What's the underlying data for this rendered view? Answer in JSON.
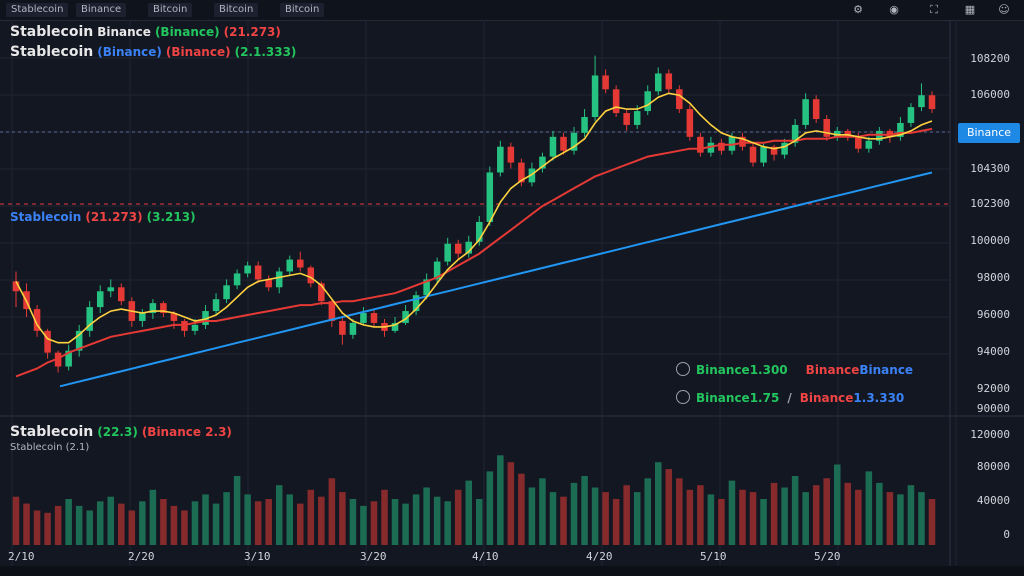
{
  "topbar": {
    "tabs": [
      "Stablecoin",
      "Binance",
      "Bitcoin",
      "Bitcoin"
    ],
    "icons": [
      "settings-icon",
      "camera-icon",
      "fullscreen-icon",
      "layout-icon",
      "user-icon"
    ]
  },
  "legend_main": {
    "line1": {
      "symbol": "Stablecoin",
      "name": "Binance",
      "params": "(Binance)",
      "value": "(21.273)"
    },
    "line2": {
      "symbol": "Stablecoin",
      "name": "(Binance)",
      "params": "(Binance)",
      "value": "(2.1.333)"
    }
  },
  "legend_ma": {
    "name": "Stablecoin",
    "value_red": "(21.273)",
    "value_green": "(3.213)"
  },
  "legend_volume": {
    "line1_a": "Stablecoin",
    "line1_b": "(22.3)",
    "line1_c": "(Binance 2.3)",
    "line2": "Stablecoin (2.1)"
  },
  "info_rows": {
    "row1": {
      "label": "Binance",
      "val1": "1.300",
      "val2": "Binance",
      "val3": "Binance"
    },
    "row2": {
      "label": "Binance",
      "val1": "1.75",
      "sep": "/",
      "val2": "Binance",
      "val3": "1.3.330"
    }
  },
  "price_axis": [
    "108200",
    "106000",
    "104300",
    "102300",
    "100000",
    "98000",
    "96000",
    "94000",
    "92000",
    "90000"
  ],
  "volume_axis": [
    "120000",
    "80000",
    "40000",
    "0"
  ],
  "time_axis": [
    "2/10",
    "2/20",
    "3/10",
    "3/20",
    "4/10",
    "4/20",
    "5/10",
    "5/20"
  ],
  "current_price_label": "Binance",
  "colors": {
    "up": "#26c281",
    "down": "#e53935",
    "ma_fast": "#ffd23f",
    "ma_mid": "#e53935",
    "ma_slow": "#2196f3",
    "bg": "#131722"
  },
  "chart_data": {
    "type": "candlestick",
    "candles": [
      [
        96800,
        96300,
        97300,
        95500
      ],
      [
        96300,
        95400,
        96700,
        95000
      ],
      [
        95400,
        94300,
        95600,
        94000
      ],
      [
        94300,
        93200,
        94400,
        92900
      ],
      [
        93200,
        92500,
        93300,
        92200
      ],
      [
        92500,
        93300,
        93600,
        92300
      ],
      [
        93300,
        94300,
        94600,
        93000
      ],
      [
        94300,
        95500,
        95800,
        94000
      ],
      [
        95500,
        96300,
        96600,
        95200
      ],
      [
        96300,
        96500,
        96900,
        96000
      ],
      [
        96500,
        95800,
        96700,
        95600
      ],
      [
        95800,
        94800,
        96000,
        94500
      ],
      [
        94800,
        95200,
        95400,
        94500
      ],
      [
        95200,
        95700,
        95900,
        94900
      ],
      [
        95700,
        95200,
        95800,
        95000
      ],
      [
        95200,
        94800,
        95300,
        94400
      ],
      [
        94800,
        94300,
        94900,
        94000
      ],
      [
        94300,
        94600,
        94900,
        94100
      ],
      [
        94600,
        95300,
        95600,
        94400
      ],
      [
        95300,
        95900,
        96200,
        95100
      ],
      [
        95900,
        96600,
        96900,
        95700
      ],
      [
        96600,
        97200,
        97400,
        96400
      ],
      [
        97200,
        97600,
        97800,
        97000
      ],
      [
        97600,
        96900,
        97800,
        96700
      ],
      [
        96900,
        96500,
        97100,
        96300
      ],
      [
        96500,
        97300,
        97500,
        96200
      ],
      [
        97300,
        97900,
        98100,
        97100
      ],
      [
        97900,
        97500,
        98300,
        97300
      ],
      [
        97500,
        96700,
        97600,
        96500
      ],
      [
        96700,
        95800,
        96800,
        95600
      ],
      [
        95800,
        94800,
        95900,
        94500
      ],
      [
        94800,
        94100,
        95000,
        93600
      ],
      [
        94100,
        94700,
        94900,
        93900
      ],
      [
        94700,
        95200,
        95500,
        94600
      ],
      [
        95200,
        94700,
        95400,
        94500
      ],
      [
        94700,
        94300,
        94900,
        94000
      ],
      [
        94300,
        94700,
        95000,
        94200
      ],
      [
        94700,
        95300,
        95600,
        94600
      ],
      [
        95300,
        96100,
        96300,
        95100
      ],
      [
        96100,
        96900,
        97200,
        95900
      ],
      [
        96900,
        97800,
        98000,
        96700
      ],
      [
        97800,
        98700,
        99000,
        97600
      ],
      [
        98700,
        98200,
        98900,
        97900
      ],
      [
        98200,
        98800,
        99100,
        98000
      ],
      [
        98800,
        99800,
        100100,
        98600
      ],
      [
        99800,
        102300,
        102600,
        99600
      ],
      [
        102300,
        103600,
        103900,
        102100
      ],
      [
        103600,
        102800,
        103800,
        102500
      ],
      [
        102800,
        101800,
        103000,
        101600
      ],
      [
        101800,
        102500,
        102800,
        101600
      ],
      [
        102500,
        103100,
        103300,
        102300
      ],
      [
        103100,
        104100,
        104400,
        102900
      ],
      [
        104100,
        103400,
        104300,
        103200
      ],
      [
        103400,
        104300,
        104600,
        103200
      ],
      [
        104300,
        105100,
        105500,
        104100
      ],
      [
        105100,
        107200,
        108200,
        104900
      ],
      [
        107200,
        106500,
        107500,
        106300
      ],
      [
        106500,
        105300,
        106700,
        105100
      ],
      [
        105300,
        104700,
        105500,
        104400
      ],
      [
        104700,
        105400,
        105700,
        104500
      ],
      [
        105400,
        106400,
        106700,
        105200
      ],
      [
        106400,
        107300,
        107600,
        106200
      ],
      [
        107300,
        106500,
        107500,
        106300
      ],
      [
        106500,
        105500,
        106700,
        105300
      ],
      [
        105500,
        104100,
        105700,
        103900
      ],
      [
        104100,
        103300,
        104300,
        103100
      ],
      [
        103300,
        103800,
        104100,
        103100
      ],
      [
        103800,
        103400,
        104000,
        103200
      ],
      [
        103400,
        104100,
        104300,
        103200
      ],
      [
        104100,
        103600,
        104300,
        103400
      ],
      [
        103600,
        102800,
        103800,
        102600
      ],
      [
        102800,
        103600,
        103800,
        102600
      ],
      [
        103600,
        103200,
        103700,
        102900
      ],
      [
        103200,
        103800,
        104000,
        103000
      ],
      [
        103800,
        104700,
        105000,
        103600
      ],
      [
        104700,
        106000,
        106300,
        104500
      ],
      [
        106000,
        105000,
        106200,
        104800
      ],
      [
        105000,
        104100,
        105200,
        103900
      ],
      [
        104100,
        104400,
        104600,
        103900
      ],
      [
        104400,
        104100,
        104500,
        103900
      ],
      [
        104100,
        103500,
        104300,
        103300
      ],
      [
        103500,
        103900,
        104100,
        103300
      ],
      [
        103900,
        104400,
        104600,
        103700
      ],
      [
        104400,
        104100,
        104500,
        103800
      ],
      [
        104100,
        104800,
        105100,
        103900
      ],
      [
        104800,
        105600,
        105800,
        104600
      ],
      [
        105600,
        106200,
        106800,
        105400
      ],
      [
        106200,
        105500,
        106400,
        105300
      ]
    ],
    "ma_fast": [
      96800,
      95800,
      94600,
      93900,
      93700,
      93700,
      94100,
      94600,
      95000,
      95300,
      95400,
      95300,
      95200,
      95300,
      95300,
      95200,
      95000,
      94800,
      94900,
      95100,
      95500,
      96000,
      96500,
      96800,
      96900,
      97000,
      97100,
      97200,
      97000,
      96600,
      95900,
      95200,
      94800,
      94600,
      94500,
      94500,
      94600,
      94900,
      95400,
      96000,
      96700,
      97400,
      97900,
      98300,
      98900,
      99800,
      100800,
      101500,
      101900,
      102200,
      102600,
      103000,
      103300,
      103600,
      104000,
      104800,
      105400,
      105600,
      105500,
      105500,
      105700,
      106100,
      106300,
      106200,
      105800,
      105200,
      104700,
      104300,
      104100,
      104000,
      103800,
      103600,
      103500,
      103600,
      103900,
      104300,
      104400,
      104300,
      104200,
      104200,
      104100,
      104000,
      104000,
      104100,
      104200,
      104400,
      104700,
      104900
    ],
    "ma_mid": [
      92000,
      92200,
      92400,
      92700,
      92900,
      93200,
      93400,
      93600,
      93800,
      94000,
      94100,
      94200,
      94300,
      94400,
      94500,
      94600,
      94600,
      94700,
      94800,
      94800,
      94900,
      95000,
      95100,
      95200,
      95300,
      95400,
      95500,
      95600,
      95600,
      95700,
      95700,
      95800,
      95800,
      95900,
      96000,
      96100,
      96200,
      96400,
      96600,
      96800,
      97000,
      97300,
      97600,
      97900,
      98200,
      98600,
      99000,
      99400,
      99800,
      100200,
      100600,
      100900,
      101200,
      101500,
      101800,
      102100,
      102300,
      102500,
      102700,
      102900,
      103100,
      103200,
      103300,
      103400,
      103500,
      103500,
      103600,
      103700,
      103700,
      103800,
      103800,
      103800,
      103900,
      103900,
      103900,
      104000,
      104000,
      104000,
      104100,
      104100,
      104100,
      104200,
      104200,
      104200,
      104300,
      104300,
      104400,
      104500
    ],
    "ma_slow": [
      91500,
      91700,
      91900,
      92100,
      92300,
      92500,
      92700,
      92900,
      93100,
      93300,
      93500,
      93700,
      93900,
      94100,
      94300,
      94500,
      94700,
      94900,
      95100,
      95300,
      95500,
      95700,
      95900,
      96100,
      96300,
      96500,
      96700,
      96900,
      97100,
      97300,
      97500,
      97700,
      97900,
      98100,
      98300,
      98500,
      98700,
      98900,
      99100,
      99300,
      99500,
      99700,
      99900,
      100100,
      100300,
      100500,
      100700,
      100900,
      101100,
      101300,
      101500,
      101700,
      101900,
      102100,
      102300
    ]
  },
  "volume_data": [
    42,
    36,
    30,
    28,
    34,
    40,
    34,
    30,
    38,
    42,
    36,
    30,
    38,
    48,
    40,
    34,
    30,
    38,
    44,
    36,
    46,
    60,
    44,
    38,
    40,
    52,
    44,
    36,
    48,
    42,
    58,
    46,
    40,
    34,
    38,
    48,
    40,
    36,
    44,
    50,
    42,
    38,
    48,
    56,
    40,
    64,
    78,
    72,
    62,
    50,
    58,
    46,
    42,
    54,
    60,
    50,
    46,
    40,
    52,
    46,
    58,
    72,
    66,
    58,
    48,
    52,
    44,
    40,
    56,
    48,
    46,
    40,
    54,
    50,
    60,
    46,
    52,
    58,
    70,
    54,
    48,
    64,
    54,
    46,
    44,
    52,
    46,
    40
  ]
}
